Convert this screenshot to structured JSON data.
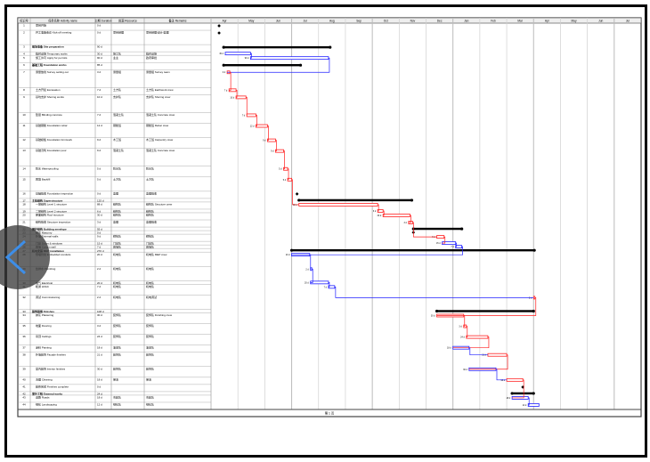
{
  "document": {
    "page_footer": "第 1 页",
    "headers": [
      "标识号",
      "任务名称 Activity name",
      "工期 Duration",
      "资源 Resource",
      "备注 Remarks"
    ],
    "months": [
      "Apr",
      "May",
      "Jun",
      "Jul",
      "Aug",
      "Sep",
      "Oct",
      "Nov",
      "Dec",
      "Jan",
      "Feb",
      "Mar",
      "Apr",
      "May",
      "Jun",
      "Jul"
    ],
    "colors": {
      "critical": "#ff2020",
      "task": "#2020ff",
      "summary": "#000000",
      "grid": "#d0d0d0"
    },
    "rows": [
      {
        "id": "1",
        "name": "项目开始",
        "dur": "0 d",
        "res": "",
        "note": "",
        "lines": 2,
        "bar": {
          "type": "ms",
          "start": 0.3,
          "end": 0.3
        }
      },
      {
        "id": "2",
        "name": "开工准备会议 Kick-off meeting",
        "dur": "0 d",
        "res": "项目经理",
        "note": "项目经理/设计/监理",
        "lines": 4,
        "bar": {
          "type": "ms",
          "start": 0.3,
          "end": 0.3
        }
      },
      {
        "id": "3",
        "name": "现场准备 Site preparation",
        "dur": "90 d",
        "res": "",
        "note": "",
        "lines": 2,
        "bar": {
          "type": "summary",
          "start": 0.47,
          "end": 4.43
        }
      },
      {
        "id": "4",
        "name": "临时设施 Temporary works",
        "dur": "30 d",
        "res": "施工队",
        "note": "临时设施",
        "lines": 1,
        "bar": {
          "type": "task",
          "start": 0.53,
          "end": 1.47
        }
      },
      {
        "id": "5",
        "name": "施工许可 Apply for permits",
        "dur": "90 d",
        "res": "业主",
        "note": "政府审批",
        "lines": 2,
        "bar": {
          "type": "task",
          "start": 1.47,
          "end": 4.37
        }
      },
      {
        "id": "6",
        "name": "基础工程 Foundation works",
        "dur": "85 d",
        "res": "",
        "note": "",
        "lines": 2,
        "bar": {
          "type": "summary",
          "start": 0.47,
          "end": 3.33
        }
      },
      {
        "id": "7",
        "name": "测量放线 Survey setting out",
        "dur": "3 d",
        "res": "测量组",
        "note": "测量组 Survey team",
        "lines": 5,
        "bar": {
          "type": "crit",
          "start": 0.6,
          "end": 0.7
        }
      },
      {
        "id": "8",
        "name": "土方开挖 Excavation",
        "dur": "7 d",
        "res": "土方队",
        "note": "土方队 Earthwork crew",
        "lines": 2,
        "bar": {
          "type": "crit",
          "start": 0.67,
          "end": 0.93
        }
      },
      {
        "id": "9",
        "name": "基坑支护 Shoring works",
        "dur": "10 d",
        "res": "支护队",
        "note": "支护队 Shoring crew",
        "lines": 5,
        "bar": {
          "type": "crit",
          "start": 0.93,
          "end": 1.3
        }
      },
      {
        "id": "10",
        "name": "垫层 Blinding concrete",
        "dur": "7 d",
        "res": "混凝土队",
        "note": "混凝土队 Concrete crew",
        "lines": 3,
        "bar": {
          "type": "crit",
          "start": 1.33,
          "end": 1.67
        }
      },
      {
        "id": "11",
        "name": "基础钢筋 Foundation rebar",
        "dur": "12 d",
        "res": "钢筋班",
        "note": "钢筋班 Rebar crew",
        "lines": 4,
        "bar": {
          "type": "crit",
          "start": 1.67,
          "end": 2.1
        }
      },
      {
        "id": "12",
        "name": "基础模板 Foundation formwork",
        "dur": "9 d",
        "res": "木工班",
        "note": "木工班 Carpentry crew",
        "lines": 3,
        "bar": {
          "type": "crit",
          "start": 2.1,
          "end": 2.4
        }
      },
      {
        "id": "13",
        "name": "基础浇筑 Foundation pour",
        "dur": "9 d",
        "res": "混凝土队",
        "note": "混凝土队 Concrete crew",
        "lines": 5,
        "bar": {
          "type": "crit",
          "start": 2.4,
          "end": 2.7
        }
      },
      {
        "id": "14",
        "name": "防水 Waterproofing",
        "dur": "5 d",
        "res": "防水队",
        "note": "防水队",
        "lines": 3,
        "bar": {
          "type": "crit",
          "start": 2.7,
          "end": 2.85
        }
      },
      {
        "id": "15",
        "name": "回填 Backfill",
        "dur": "5 d",
        "res": "土方队",
        "note": "土方队",
        "lines": 4,
        "bar": {
          "type": "crit",
          "start": 2.85,
          "end": 3.0
        }
      },
      {
        "id": "16",
        "name": "基础验收 Foundation inspection",
        "dur": "0 d",
        "res": "监理",
        "note": "监理验收",
        "lines": 2,
        "bar": {
          "type": "ms",
          "start": 3.2,
          "end": 3.2
        }
      },
      {
        "id": "17",
        "name": "主体结构 Superstructure",
        "dur": "125 d",
        "res": "",
        "note": "",
        "lines": 1,
        "bar": {
          "type": "summary",
          "start": 3.27,
          "end": 7.47
        }
      },
      {
        "id": "18",
        "name": "一层结构 Level 1 structure",
        "dur": "88 d",
        "res": "结构队",
        "note": "结构队 Structure crew",
        "lines": 2,
        "bar": {
          "type": "crit",
          "start": 3.27,
          "end": 6.2
        }
      },
      {
        "id": "19",
        "name": "二层结构 Level 2 structure",
        "dur": "6 d",
        "res": "结构队",
        "note": "结构队",
        "lines": 1,
        "bar": {
          "type": "crit",
          "start": 6.2,
          "end": 6.4
        }
      },
      {
        "id": "20",
        "name": "屋面结构 Roof structure",
        "dur": "30 d",
        "res": "结构队",
        "note": "结构队",
        "lines": 2,
        "bar": {
          "type": "crit",
          "start": 6.4,
          "end": 7.4
        }
      },
      {
        "id": "21",
        "name": "结构验收 Structure inspection",
        "dur": "3 d",
        "res": "监理",
        "note": "监理验收",
        "lines": 2,
        "bar": {
          "type": "crit",
          "start": 7.35,
          "end": 7.5
        }
      },
      {
        "id": "22",
        "name": "围护结构 Building envelope",
        "dur": "55 d",
        "res": "",
        "note": "",
        "lines": 1,
        "bar": {
          "type": "summary",
          "start": 7.53,
          "end": 9.33
        }
      },
      {
        "id": "23",
        "name": "砌体 Masonry",
        "dur": "0 d",
        "res": "",
        "note": "",
        "lines": 1,
        "bar": {
          "type": "ms",
          "start": 7.53,
          "end": 7.53
        }
      },
      {
        "id": "24",
        "name": "外墙 External walls",
        "dur": "9 d",
        "res": "砌筑队",
        "note": "砌筑队",
        "lines": 2,
        "bar": {
          "type": "crit",
          "start": 8.4,
          "end": 8.67
        }
      },
      {
        "id": "25",
        "name": "门窗 Doors & windows",
        "dur": "15 d",
        "res": "门窗队",
        "note": "门窗队",
        "lines": 1,
        "bar": {
          "type": "task",
          "start": 8.6,
          "end": 9.1
        }
      },
      {
        "id": "26",
        "name": "幕墙 Curtain wall",
        "dur": "7 d",
        "res": "幕墙队",
        "note": "幕墙队",
        "lines": 1,
        "bar": {
          "type": "task",
          "start": 9.1,
          "end": 9.33
        }
      },
      {
        "id": "27",
        "name": "机电安装 MEP installation",
        "dur": "270 d",
        "res": "",
        "note": "",
        "lines": 1,
        "bar": {
          "type": "summary",
          "start": 3.0,
          "end": 12.03
        }
      },
      {
        "id": "28",
        "name": "预埋管线 Embedded conduits",
        "dur": "20 d",
        "res": "机电队",
        "note": "机电队 MEP crew",
        "lines": 4,
        "bar": {
          "type": "task",
          "start": 3.0,
          "end": 3.67
        }
      },
      {
        "id": "29",
        "name": "给排水 Plumbing",
        "dur": "2 d",
        "res": "机电队",
        "note": "机电队",
        "lines": 4,
        "bar": {
          "type": "task",
          "start": 3.7,
          "end": 3.75
        }
      },
      {
        "id": "30",
        "name": "电气 Electrical",
        "dur": "20 d",
        "res": "机电队",
        "note": "机电队",
        "lines": 1,
        "bar": {
          "type": "task",
          "start": 3.7,
          "end": 4.37
        }
      },
      {
        "id": "31",
        "name": "暖通 HVAC",
        "dur": "7 d",
        "res": "机电队",
        "note": "机电队",
        "lines": 3,
        "bar": {
          "type": "task",
          "start": 4.37,
          "end": 4.6
        }
      },
      {
        "id": "32",
        "name": "调试 Commissioning",
        "dur": "2 d",
        "res": "机电队",
        "note": "机电调试",
        "lines": 4,
        "bar": {
          "type": "crit",
          "start": 12.0,
          "end": 12.05
        }
      },
      {
        "id": "33",
        "name": "装饰装修 Finishes",
        "dur": "108 d",
        "res": "",
        "note": "",
        "lines": 1,
        "bar": {
          "type": "summary",
          "start": 8.4,
          "end": 12.0
        }
      },
      {
        "id": "34",
        "name": "抹灰 Plastering",
        "dur": "30 d",
        "res": "装饰队",
        "note": "装饰队 Finishing crew",
        "lines": 3,
        "bar": {
          "type": "crit",
          "start": 8.4,
          "end": 9.4
        }
      },
      {
        "id": "35",
        "name": "地面 Flooring",
        "dur": "3 d",
        "res": "装饰队",
        "note": "装饰队",
        "lines": 3,
        "bar": {
          "type": "crit",
          "start": 9.4,
          "end": 9.5
        }
      },
      {
        "id": "36",
        "name": "吊顶 Ceilings",
        "dur": "24 d",
        "res": "装饰队",
        "note": "装饰队",
        "lines": 3,
        "bar": {
          "type": "crit",
          "start": 9.5,
          "end": 10.3
        }
      },
      {
        "id": "37",
        "name": "涂料 Painting",
        "dur": "18 d",
        "res": "油漆队",
        "note": "油漆队",
        "lines": 2,
        "bar": {
          "type": "task",
          "start": 9.0,
          "end": 9.6
        }
      },
      {
        "id": "38",
        "name": "外墙装饰 Facade finishes",
        "dur": "21 d",
        "res": "装饰队",
        "note": "装饰队",
        "lines": 4,
        "bar": {
          "type": "crit",
          "start": 10.3,
          "end": 11.0
        }
      },
      {
        "id": "39",
        "name": "室内装饰 Interior finishes",
        "dur": "30 d",
        "res": "装饰队",
        "note": "装饰队",
        "lines": 3,
        "bar": {
          "type": "task",
          "start": 9.6,
          "end": 10.6
        }
      },
      {
        "id": "40",
        "name": "清理 Cleaning",
        "dur": "18 d",
        "res": "保洁",
        "note": "保洁",
        "lines": 2,
        "bar": {
          "type": "crit",
          "start": 11.0,
          "end": 11.6
        }
      },
      {
        "id": "41",
        "name": "装修完成 Finishes complete",
        "dur": "0 d",
        "res": "",
        "note": "",
        "lines": 2,
        "bar": {
          "type": "ms",
          "start": 11.6,
          "end": 11.6
        }
      },
      {
        "id": "42",
        "name": "室外工程 External works",
        "dur": "24 d",
        "res": "",
        "note": "",
        "lines": 1,
        "bar": {
          "type": "summary",
          "start": 11.2,
          "end": 12.0
        }
      },
      {
        "id": "43",
        "name": "道路 Roads",
        "dur": "18 d",
        "res": "市政队",
        "note": "市政队",
        "lines": 2,
        "bar": {
          "type": "task",
          "start": 11.2,
          "end": 11.8
        }
      },
      {
        "id": "44",
        "name": "绿化 Landscaping",
        "dur": "12 d",
        "res": "绿化队",
        "note": "绿化队",
        "lines": 2,
        "bar": {
          "type": "task",
          "start": 11.8,
          "end": 12.2
        }
      }
    ]
  },
  "viewer": {
    "prev_button": "previous-page"
  }
}
